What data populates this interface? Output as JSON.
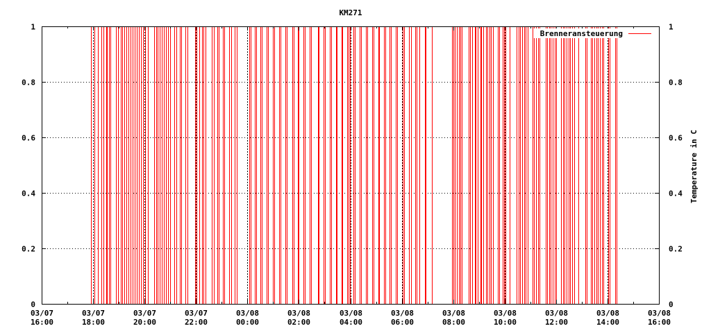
{
  "chart_data": {
    "type": "line",
    "title": "KM271",
    "xlabel": "",
    "ylabel_left": "",
    "ylabel_right": "Temperature in C",
    "xlim": [
      "03/07 16:00",
      "03/08 16:00"
    ],
    "ylim": [
      0,
      1
    ],
    "grid": true,
    "legend_position": "top-right",
    "x_ticks": [
      [
        "03/07",
        "16:00"
      ],
      [
        "03/07",
        "18:00"
      ],
      [
        "03/07",
        "20:00"
      ],
      [
        "03/07",
        "22:00"
      ],
      [
        "03/08",
        "00:00"
      ],
      [
        "03/08",
        "02:00"
      ],
      [
        "03/08",
        "04:00"
      ],
      [
        "03/08",
        "06:00"
      ],
      [
        "03/08",
        "08:00"
      ],
      [
        "03/08",
        "10:00"
      ],
      [
        "03/08",
        "12:00"
      ],
      [
        "03/08",
        "14:00"
      ],
      [
        "03/08",
        "16:00"
      ]
    ],
    "y_ticks": [
      "0",
      "0.2",
      "0.4",
      "0.6",
      "0.8",
      "1"
    ],
    "series": [
      {
        "name": "Brenneransteuerung",
        "color": "#ff0000",
        "style": "steps between 0 and 1",
        "switch_times": [
          {
            "date": "03/07",
            "times": [
              "17:55",
              "18:03",
              "18:11",
              "18:20",
              "18:24",
              "18:30",
              "18:33",
              "18:37",
              "18:41",
              "18:54",
              "18:58",
              "19:04",
              "19:08",
              "19:13",
              "19:18",
              "19:23",
              "19:27",
              "19:32",
              "19:37",
              "19:42",
              "19:47",
              "19:52",
              "19:57",
              "20:02",
              "20:08",
              "20:22",
              "20:27",
              "20:30",
              "20:35",
              "20:40",
              "20:45",
              "20:50",
              "20:54",
              "21:00",
              "21:10",
              "21:14",
              "21:23",
              "21:26",
              "21:35",
              "21:40",
              "21:58",
              "22:02",
              "22:08",
              "22:14",
              "22:18",
              "22:23",
              "22:37",
              "22:41",
              "22:49",
              "22:53",
              "23:02",
              "23:06",
              "23:18",
              "23:22",
              "23:31",
              "23:35"
            ]
          },
          {
            "date": "03/08",
            "times": [
              "00:04",
              "00:07",
              "00:18",
              "00:21",
              "00:31",
              "00:34",
              "00:45",
              "00:48",
              "00:59",
              "01:02",
              "01:14",
              "01:17",
              "01:28",
              "01:31",
              "01:44",
              "01:48",
              "01:57",
              "02:00",
              "02:11",
              "02:14",
              "02:25",
              "02:28",
              "02:44",
              "02:47",
              "02:58",
              "03:01",
              "03:13",
              "03:16",
              "03:26",
              "03:29",
              "03:39",
              "03:42",
              "03:53",
              "03:56",
              "03:59",
              "04:08",
              "04:11",
              "04:22",
              "04:25",
              "04:37",
              "04:40",
              "04:51",
              "04:54",
              "05:05",
              "05:08",
              "05:18",
              "05:22",
              "05:32",
              "05:35",
              "05:46",
              "05:49",
              "06:03",
              "06:05",
              "06:17",
              "06:21",
              "06:31",
              "06:35",
              "06:41",
              "06:54",
              "06:56",
              "07:10",
              "07:58",
              "08:00",
              "08:04",
              "08:09",
              "08:14",
              "08:17",
              "08:20",
              "08:36",
              "08:40",
              "08:45",
              "08:50",
              "08:53",
              "08:58",
              "09:03",
              "09:06",
              "09:10",
              "09:17",
              "09:20",
              "09:24",
              "09:28",
              "09:33",
              "09:45",
              "09:48",
              "09:55",
              "09:59",
              "10:02",
              "10:12",
              "10:28",
              "10:32",
              "10:36",
              "10:41",
              "10:45",
              "10:49",
              "10:54",
              "11:06",
              "11:09",
              "11:13",
              "11:18",
              "11:22",
              "11:36",
              "11:39",
              "11:44",
              "11:48",
              "11:52",
              "11:57",
              "12:00",
              "12:12",
              "12:16",
              "12:20",
              "12:25",
              "12:29",
              "12:33",
              "12:38",
              "12:42",
              "12:52",
              "13:09",
              "13:12",
              "13:21",
              "13:25",
              "13:29",
              "13:34",
              "13:38",
              "13:42",
              "13:47",
              "13:51",
              "14:02",
              "14:05",
              "14:18",
              "14:22"
            ]
          }
        ]
      }
    ]
  }
}
